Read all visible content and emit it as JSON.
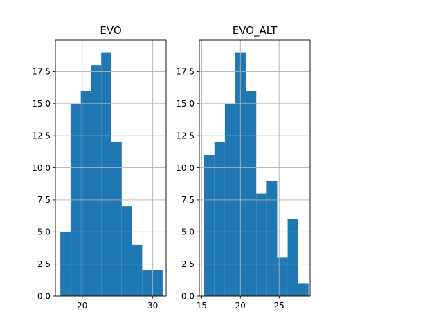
{
  "chart_data": [
    {
      "type": "bar",
      "title": "EVO",
      "xlabel": "",
      "ylabel": "",
      "xlim": [
        16.2,
        31.9
      ],
      "ylim": [
        0,
        19.95
      ],
      "xticks": [
        20,
        30
      ],
      "yticks": [
        0.0,
        2.5,
        5.0,
        7.5,
        10.0,
        12.5,
        15.0,
        17.5
      ],
      "grid": true,
      "bin_edges": [
        16.9,
        18.35,
        19.8,
        21.25,
        22.7,
        24.15,
        25.6,
        27.05,
        28.5,
        29.95,
        31.4
      ],
      "values": [
        5,
        15,
        16,
        18,
        19,
        12,
        7,
        4,
        2,
        2
      ]
    },
    {
      "type": "bar",
      "title": "EVO_ALT",
      "xlabel": "",
      "ylabel": "",
      "xlim": [
        14.7,
        29.0
      ],
      "ylim": [
        0,
        19.95
      ],
      "xticks": [
        15,
        20,
        25
      ],
      "yticks": [
        0.0,
        2.5,
        5.0,
        7.5,
        10.0,
        12.5,
        15.0,
        17.5
      ],
      "grid": true,
      "bin_edges": [
        15.3,
        16.65,
        18.0,
        19.35,
        20.7,
        22.05,
        23.4,
        24.75,
        26.1,
        27.45,
        28.8
      ],
      "values": [
        11,
        12,
        15,
        19,
        16,
        8,
        9,
        3,
        6,
        1
      ]
    }
  ],
  "colors": {
    "bar": "#1f77b4",
    "grid": "#b0b0b0",
    "axis": "#000000"
  }
}
